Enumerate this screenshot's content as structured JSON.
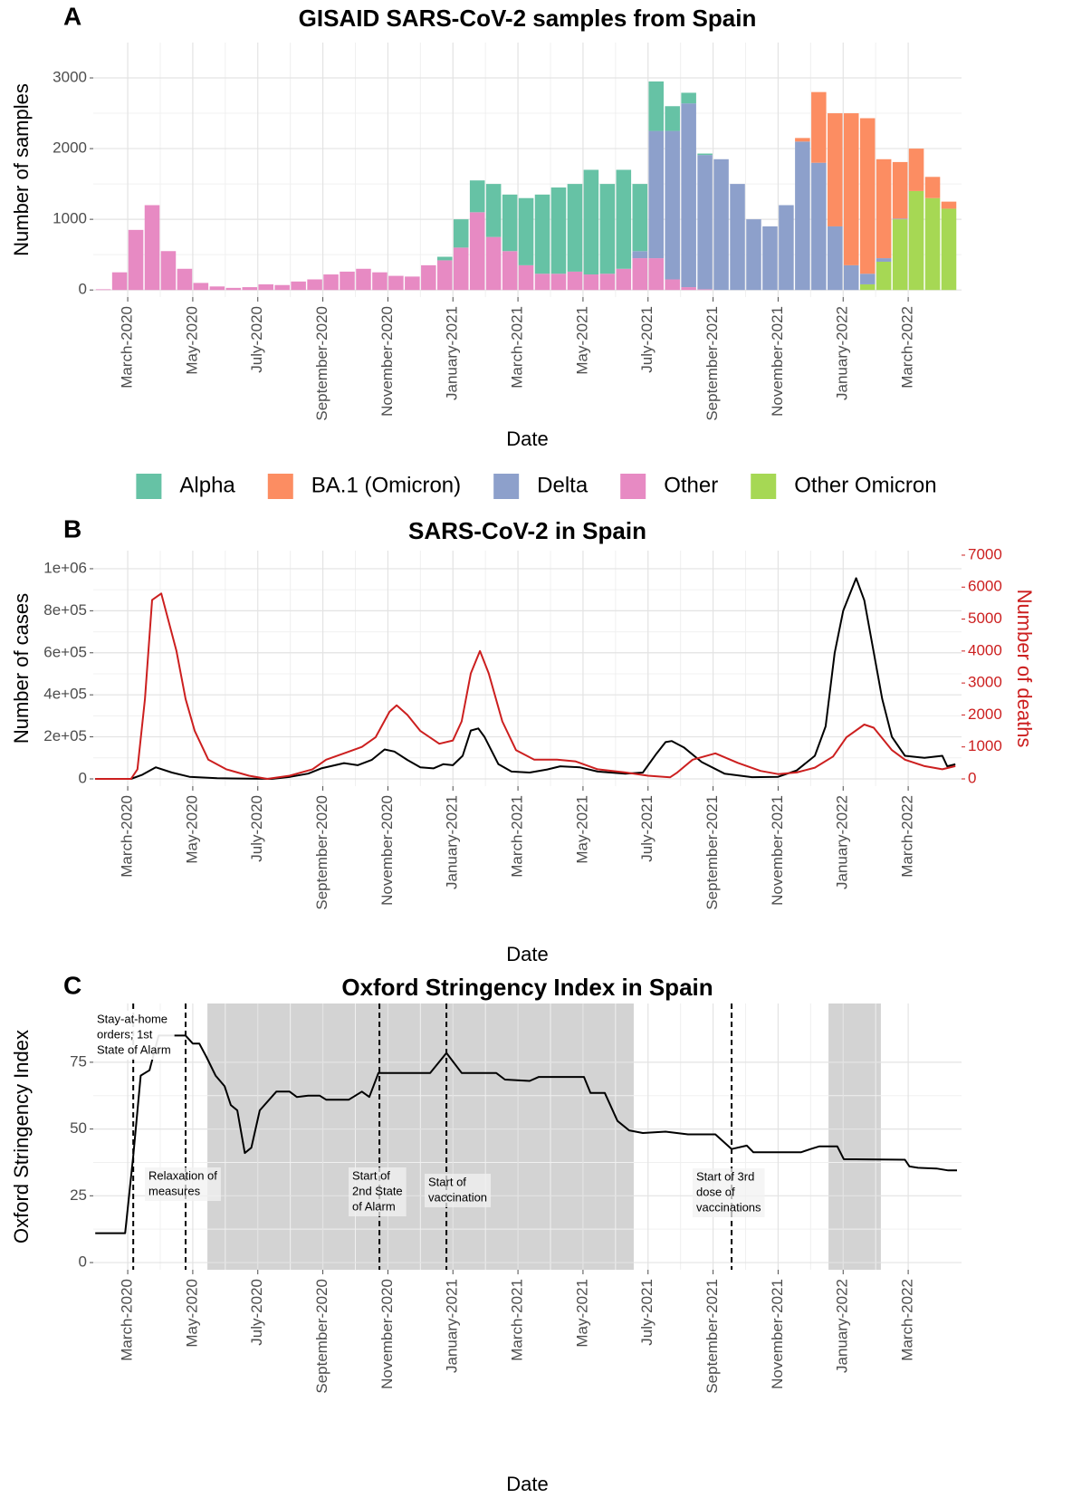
{
  "chart_data": [
    {
      "panel": "A",
      "type": "bar",
      "stacked": true,
      "title": "GISAID SARS-CoV-2 samples from Spain",
      "xlabel": "Date",
      "ylabel": "Number of samples",
      "legend": "bottom",
      "grid": true,
      "xlim": [
        1.94,
        28.64
      ],
      "xticks": [
        {
          "value": 3,
          "label": "March-2020"
        },
        {
          "value": 5,
          "label": "May-2020"
        },
        {
          "value": 7,
          "label": "July-2020"
        },
        {
          "value": 9,
          "label": "September-2020"
        },
        {
          "value": 11,
          "label": "November-2020"
        },
        {
          "value": 13,
          "label": "January-2021"
        },
        {
          "value": 15,
          "label": "March-2021"
        },
        {
          "value": 17,
          "label": "May-2021"
        },
        {
          "value": 19,
          "label": "July-2021"
        },
        {
          "value": 21,
          "label": "September-2021"
        },
        {
          "value": 23,
          "label": "November-2021"
        },
        {
          "value": 25,
          "label": "January-2022"
        },
        {
          "value": 27,
          "label": "March-2022"
        }
      ],
      "ylim": [
        -100,
        3500
      ],
      "yticks": [
        0,
        1000,
        2000,
        3000
      ],
      "x": [
        2.25,
        2.75,
        3.25,
        3.75,
        4.25,
        4.75,
        5.25,
        5.75,
        6.25,
        6.75,
        7.25,
        7.75,
        8.25,
        8.75,
        9.25,
        9.75,
        10.25,
        10.75,
        11.25,
        11.75,
        12.25,
        12.75,
        13.25,
        13.75,
        14.25,
        14.75,
        15.25,
        15.75,
        16.25,
        16.75,
        17.25,
        17.75,
        18.25,
        18.75,
        19.25,
        19.75,
        20.25,
        20.75,
        21.25,
        21.75,
        22.25,
        22.75,
        23.25,
        23.75,
        24.25,
        24.75,
        25.25,
        25.75,
        26.25,
        26.75,
        27.25,
        27.75,
        28.25
      ],
      "bar_width": 0.46,
      "series": [
        {
          "name": "Alpha",
          "color": "#66c2a5",
          "values": [
            0,
            0,
            0,
            0,
            0,
            0,
            0,
            0,
            0,
            0,
            0,
            0,
            0,
            0,
            0,
            0,
            0,
            0,
            0,
            0,
            0,
            50,
            400,
            450,
            750,
            800,
            950,
            1120,
            1220,
            1240,
            1480,
            1270,
            1400,
            950,
            700,
            350,
            150,
            20,
            0,
            0,
            0,
            0,
            0,
            0,
            0,
            0,
            0,
            0,
            0,
            0,
            0,
            0,
            0
          ]
        },
        {
          "name": "BA.1 (Omicron)",
          "color": "#fc8d62",
          "values": [
            0,
            0,
            0,
            0,
            0,
            0,
            0,
            0,
            0,
            0,
            0,
            0,
            0,
            0,
            0,
            0,
            0,
            0,
            0,
            0,
            0,
            0,
            0,
            0,
            0,
            0,
            0,
            0,
            0,
            0,
            0,
            0,
            0,
            0,
            0,
            0,
            0,
            0,
            0,
            0,
            0,
            0,
            0,
            50,
            1000,
            1600,
            2150,
            2200,
            1400,
            800,
            600,
            300,
            100
          ]
        },
        {
          "name": "Delta",
          "color": "#8da0cb",
          "values": [
            0,
            0,
            0,
            0,
            0,
            0,
            0,
            0,
            0,
            0,
            0,
            0,
            0,
            0,
            0,
            0,
            0,
            0,
            0,
            0,
            0,
            0,
            0,
            0,
            0,
            0,
            0,
            0,
            0,
            0,
            0,
            0,
            0,
            100,
            1800,
            2100,
            2600,
            1900,
            1850,
            1500,
            1000,
            900,
            1200,
            2100,
            1800,
            900,
            350,
            150,
            50,
            10,
            0,
            0,
            0
          ]
        },
        {
          "name": "Other",
          "color": "#e78ac3",
          "values": [
            10,
            250,
            850,
            1200,
            550,
            300,
            100,
            50,
            30,
            40,
            80,
            70,
            120,
            150,
            220,
            260,
            300,
            250,
            200,
            190,
            350,
            420,
            600,
            1100,
            750,
            550,
            350,
            230,
            230,
            260,
            220,
            230,
            300,
            450,
            450,
            150,
            40,
            10,
            0,
            0,
            0,
            0,
            0,
            0,
            0,
            0,
            0,
            0,
            0,
            0,
            0,
            0,
            0
          ]
        },
        {
          "name": "Other Omicron",
          "color": "#a6d854",
          "values": [
            0,
            0,
            0,
            0,
            0,
            0,
            0,
            0,
            0,
            0,
            0,
            0,
            0,
            0,
            0,
            0,
            0,
            0,
            0,
            0,
            0,
            0,
            0,
            0,
            0,
            0,
            0,
            0,
            0,
            0,
            0,
            0,
            0,
            0,
            0,
            0,
            0,
            0,
            0,
            0,
            0,
            0,
            0,
            0,
            0,
            0,
            0,
            80,
            400,
            1000,
            1400,
            1300,
            1150
          ]
        }
      ]
    },
    {
      "panel": "B",
      "type": "line",
      "title": "SARS-CoV-2 in Spain",
      "xlabel": "Date",
      "ylabel": "Number of cases",
      "y2label": "Number of deaths",
      "grid": true,
      "xlim": [
        1.94,
        28.64
      ],
      "xticks": [
        {
          "value": 3,
          "label": "March-2020"
        },
        {
          "value": 5,
          "label": "May-2020"
        },
        {
          "value": 7,
          "label": "July-2020"
        },
        {
          "value": 9,
          "label": "September-2020"
        },
        {
          "value": 11,
          "label": "November-2020"
        },
        {
          "value": 13,
          "label": "January-2021"
        },
        {
          "value": 15,
          "label": "March-2021"
        },
        {
          "value": 17,
          "label": "May-2021"
        },
        {
          "value": 19,
          "label": "July-2021"
        },
        {
          "value": 21,
          "label": "September-2021"
        },
        {
          "value": 23,
          "label": "November-2021"
        },
        {
          "value": 25,
          "label": "January-2022"
        },
        {
          "value": 27,
          "label": "March-2022"
        }
      ],
      "ylim": [
        -34500,
        1086000
      ],
      "yticks": [
        0,
        {
          "value": 200000,
          "label": "2e+05"
        },
        {
          "value": 400000,
          "label": "4e+05"
        },
        {
          "value": 600000,
          "label": "6e+05"
        },
        {
          "value": 800000,
          "label": "8e+05"
        },
        {
          "value": 1000000,
          "label": "1e+06"
        }
      ],
      "y2lim": [
        -227,
        7141
      ],
      "y2ticks": [
        0,
        1000,
        2000,
        3000,
        4000,
        5000,
        6000,
        7000
      ],
      "series": [
        {
          "color": "#000000",
          "axis": "y",
          "x": [
            2.0,
            3.1,
            3.45,
            3.86,
            4.36,
            4.9,
            5.75,
            7.43,
            8.0,
            8.55,
            8.95,
            9.65,
            10.07,
            10.5,
            10.9,
            11.2,
            11.6,
            12.0,
            12.4,
            12.7,
            13.0,
            13.3,
            13.55,
            13.78,
            13.97,
            14.4,
            14.8,
            15.36,
            15.9,
            16.3,
            16.9,
            17.45,
            18.3,
            18.84,
            19.26,
            19.54,
            19.73,
            20.1,
            20.65,
            21.35,
            22.2,
            23.0,
            23.57,
            24.13,
            24.46,
            24.74,
            25.0,
            25.4,
            25.65,
            26.2,
            26.5,
            26.9,
            27.5,
            28.05,
            28.2,
            28.45
          ],
          "values": [
            0,
            0,
            20000,
            55000,
            30000,
            10000,
            3000,
            0,
            10000,
            25000,
            50000,
            75000,
            65000,
            90000,
            140000,
            130000,
            90000,
            55000,
            50000,
            70000,
            65000,
            110000,
            230000,
            240000,
            200000,
            70000,
            35000,
            30000,
            45000,
            60000,
            55000,
            35000,
            25000,
            30000,
            120000,
            175000,
            180000,
            150000,
            80000,
            25000,
            8000,
            10000,
            40000,
            110000,
            250000,
            600000,
            800000,
            955000,
            850000,
            380000,
            200000,
            110000,
            100000,
            110000,
            60000,
            70000
          ]
        },
        {
          "color": "#cc1f1f",
          "axis": "y2",
          "x": [
            2.0,
            3.1,
            3.3,
            3.53,
            3.75,
            4.03,
            4.5,
            4.78,
            5.06,
            5.48,
            6.03,
            6.73,
            7.29,
            7.98,
            8.68,
            9.1,
            9.65,
            10.2,
            10.62,
            11.05,
            11.27,
            11.6,
            12.0,
            12.58,
            13.0,
            13.27,
            13.55,
            13.83,
            14.1,
            14.52,
            14.94,
            15.5,
            16.2,
            16.76,
            17.45,
            18.3,
            19.0,
            19.68,
            19.9,
            20.37,
            21.07,
            21.76,
            22.46,
            23.0,
            23.57,
            24.13,
            24.69,
            25.1,
            25.65,
            25.94,
            26.5,
            26.9,
            27.5,
            28.05,
            28.45
          ],
          "values": [
            0,
            0,
            300,
            2500,
            5600,
            5800,
            4000,
            2500,
            1500,
            600,
            300,
            100,
            0,
            100,
            300,
            600,
            800,
            1000,
            1300,
            2100,
            2300,
            2000,
            1500,
            1100,
            1200,
            1800,
            3300,
            4000,
            3300,
            1800,
            900,
            600,
            600,
            550,
            300,
            200,
            100,
            50,
            200,
            600,
            800,
            500,
            250,
            150,
            200,
            350,
            700,
            1300,
            1700,
            1600,
            900,
            600,
            400,
            300,
            400
          ]
        }
      ]
    },
    {
      "panel": "C",
      "type": "line",
      "title": "Oxford Stringency Index in Spain",
      "xlabel": "Date",
      "ylabel": "Oxford Stringency Index",
      "grid": true,
      "xlim": [
        1.94,
        28.64
      ],
      "xticks": [
        {
          "value": 3,
          "label": "March-2020"
        },
        {
          "value": 5,
          "label": "May-2020"
        },
        {
          "value": 7,
          "label": "July-2020"
        },
        {
          "value": 9,
          "label": "September-2020"
        },
        {
          "value": 11,
          "label": "November-2020"
        },
        {
          "value": 13,
          "label": "January-2021"
        },
        {
          "value": 15,
          "label": "March-2021"
        },
        {
          "value": 17,
          "label": "May-2021"
        },
        {
          "value": 19,
          "label": "July-2021"
        },
        {
          "value": 21,
          "label": "September-2021"
        },
        {
          "value": 23,
          "label": "November-2021"
        },
        {
          "value": 25,
          "label": "January-2022"
        },
        {
          "value": 27,
          "label": "March-2022"
        }
      ],
      "ylim": [
        -2.7,
        97
      ],
      "yticks": [
        0,
        25,
        50,
        75
      ],
      "shaded_color": "#d3d3d3",
      "shaded": [
        {
          "start": 5.45,
          "end": 18.56
        },
        {
          "start": 24.55,
          "end": 26.16
        }
      ],
      "events": [
        {
          "x": 3.17,
          "lines": [
            "Stay-at-home",
            "orders; 1st",
            "State of Alarm"
          ]
        },
        {
          "x": 4.78,
          "lines": [
            "Relaxation of",
            "measures"
          ]
        },
        {
          "x": 10.74,
          "lines": [
            "Start of",
            "2nd State",
            "of Alarm"
          ]
        },
        {
          "x": 12.8,
          "lines": [
            "Start of",
            "vaccination"
          ]
        },
        {
          "x": 21.57,
          "lines": [
            "Start of 3rd",
            "dose of",
            "vaccinations"
          ]
        }
      ],
      "series": [
        {
          "color": "#000000",
          "axis": "y",
          "x": [
            2.0,
            2.92,
            3.17,
            3.4,
            3.67,
            3.95,
            4.78,
            5.0,
            5.2,
            5.42,
            5.7,
            5.98,
            6.17,
            6.37,
            6.6,
            6.8,
            7.06,
            7.57,
            7.98,
            8.2,
            8.55,
            8.9,
            9.1,
            9.8,
            10.2,
            10.43,
            10.71,
            12.3,
            12.8,
            13.27,
            14.33,
            14.6,
            15.36,
            15.64,
            17.03,
            17.23,
            17.67,
            18.06,
            18.42,
            18.84,
            19.54,
            20.23,
            21.07,
            21.57,
            22.04,
            22.24,
            23.7,
            24.0,
            24.26,
            24.82,
            25.02,
            26.9,
            27.04,
            27.3,
            27.87,
            28.23,
            28.5
          ],
          "values": [
            11,
            11,
            40,
            70,
            72,
            85,
            85,
            82,
            82,
            77,
            70,
            66,
            59,
            57,
            41,
            43,
            57,
            64,
            64,
            62,
            62.5,
            62.5,
            61,
            61,
            64,
            62,
            71,
            71,
            78.5,
            71,
            71,
            68.5,
            68,
            69.5,
            69.5,
            63.5,
            63.5,
            53,
            49.5,
            48.5,
            49,
            48,
            48,
            42.5,
            43.8,
            41.3,
            41.3,
            42.5,
            43.5,
            43.5,
            38.7,
            38.5,
            36,
            35.5,
            35.2,
            34.5,
            34.5
          ]
        }
      ]
    }
  ]
}
